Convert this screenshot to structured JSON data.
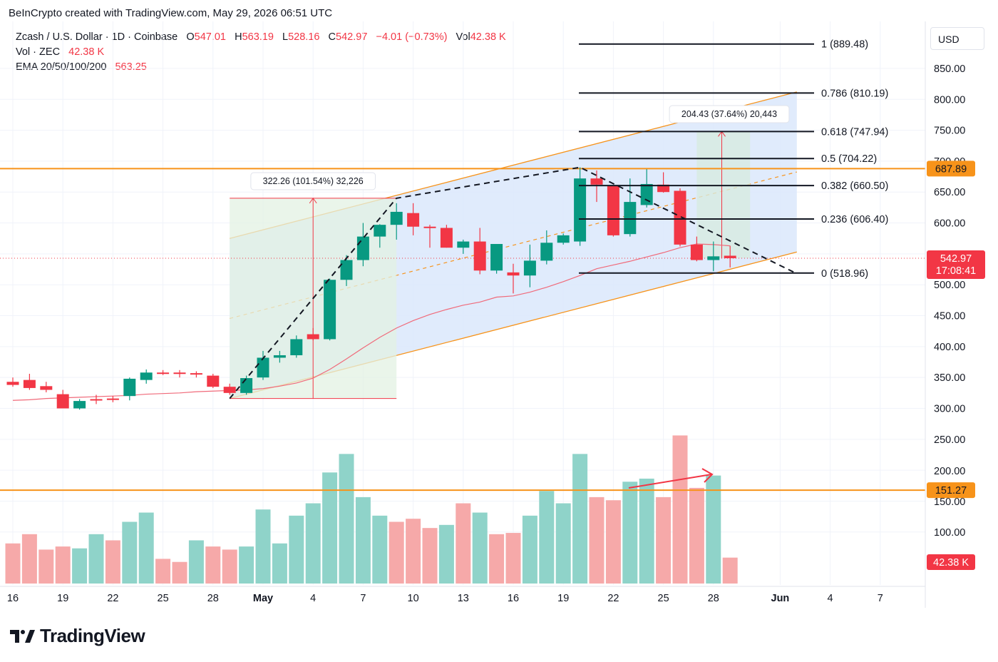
{
  "caption": "BeInCrypto created with TradingView.com, May 29, 2026 06:51 UTC",
  "legend": {
    "symbol": "Zcash / U.S. Dollar · 1D · Coinbase",
    "o_label": "O",
    "o_value": "547.01",
    "h_label": "H",
    "h_value": "563.19",
    "l_label": "L",
    "l_value": "528.16",
    "c_label": "C",
    "c_value": "542.97",
    "change": "−4.01 (−0.73%)",
    "vol_label": "Vol",
    "vol_value": "42.38 K",
    "vol_line": "Vol · ZEC",
    "vol_line_value": "42.38 K",
    "ema_line": "EMA 20/50/100/200",
    "ema_value": "563.25"
  },
  "currency": "USD",
  "brand": "TradingView",
  "colors": {
    "up": "#089981",
    "down": "#f23645",
    "vol_up": "#8fd3c9",
    "vol_down": "#f6a9a9",
    "orange": "#f7931a",
    "ema": "#f23645",
    "channel": "#dbe8fb"
  },
  "chart_data": {
    "type": "candlestick",
    "dates": [
      "Apr 16",
      "Apr 17",
      "Apr 18",
      "Apr 19",
      "Apr 20",
      "Apr 21",
      "Apr 22",
      "Apr 23",
      "Apr 24",
      "Apr 25",
      "Apr 26",
      "Apr 27",
      "Apr 28",
      "Apr 29",
      "Apr 30",
      "May 1",
      "May 2",
      "May 3",
      "May 4",
      "May 5",
      "May 6",
      "May 7",
      "May 8",
      "May 9",
      "May 10",
      "May 11",
      "May 12",
      "May 13",
      "May 14",
      "May 15",
      "May 16",
      "May 17",
      "May 18",
      "May 19",
      "May 20",
      "May 21",
      "May 22",
      "May 23",
      "May 24",
      "May 25",
      "May 26",
      "May 27",
      "May 28",
      "May 29"
    ],
    "ohlc": [
      [
        343,
        350,
        335,
        338
      ],
      [
        346,
        356,
        330,
        333
      ],
      [
        336,
        343,
        326,
        330
      ],
      [
        323,
        330,
        300,
        300
      ],
      [
        300,
        315,
        298,
        312
      ],
      [
        315,
        322,
        307,
        313
      ],
      [
        316,
        320,
        310,
        314
      ],
      [
        320,
        350,
        313,
        348
      ],
      [
        346,
        363,
        340,
        358
      ],
      [
        358,
        362,
        354,
        357
      ],
      [
        358,
        362,
        350,
        356
      ],
      [
        357,
        360,
        350,
        355
      ],
      [
        353,
        356,
        333,
        335
      ],
      [
        335,
        340,
        322,
        325
      ],
      [
        325,
        353,
        322,
        349
      ],
      [
        350,
        393,
        346,
        382
      ],
      [
        382,
        393,
        374,
        386
      ],
      [
        386,
        418,
        382,
        412
      ],
      [
        420,
        430,
        410,
        412
      ],
      [
        412,
        510,
        410,
        508
      ],
      [
        508,
        548,
        498,
        540
      ],
      [
        540,
        600,
        530,
        578
      ],
      [
        578,
        598,
        560,
        597
      ],
      [
        597,
        632,
        573,
        618
      ],
      [
        616,
        632,
        580,
        594
      ],
      [
        594,
        597,
        560,
        592
      ],
      [
        592,
        597,
        560,
        560
      ],
      [
        560,
        573,
        550,
        570
      ],
      [
        570,
        592,
        517,
        523
      ],
      [
        523,
        564,
        518,
        566
      ],
      [
        520,
        534,
        486,
        515
      ],
      [
        515,
        565,
        496,
        539
      ],
      [
        539,
        588,
        533,
        568
      ],
      [
        568,
        583,
        565,
        580
      ],
      [
        570,
        690,
        563,
        672
      ],
      [
        672,
        685,
        634,
        662
      ],
      [
        660,
        660,
        578,
        580
      ],
      [
        582,
        672,
        578,
        634
      ],
      [
        629,
        687,
        625,
        663
      ],
      [
        662,
        682,
        649,
        650
      ],
      [
        652,
        656,
        562,
        565
      ],
      [
        565,
        578,
        538,
        540
      ],
      [
        540,
        570,
        522,
        546
      ],
      [
        547,
        563,
        528,
        543
      ]
    ],
    "volume": [
      65,
      80,
      55,
      60,
      57,
      80,
      70,
      100,
      115,
      40,
      35,
      70,
      60,
      55,
      60,
      120,
      65,
      110,
      130,
      180,
      210,
      140,
      110,
      100,
      105,
      90,
      95,
      130,
      115,
      80,
      82,
      110,
      150,
      130,
      210,
      140,
      135,
      165,
      170,
      140,
      240,
      155,
      175,
      42
    ],
    "volume_down": [
      true,
      true,
      true,
      true,
      false,
      false,
      true,
      false,
      false,
      true,
      true,
      false,
      true,
      true,
      false,
      false,
      false,
      false,
      false,
      false,
      false,
      false,
      false,
      true,
      true,
      true,
      false,
      true,
      false,
      true,
      true,
      false,
      false,
      false,
      false,
      true,
      true,
      false,
      false,
      true,
      true,
      true,
      false,
      true
    ],
    "ema20": [
      313,
      314,
      316,
      317,
      318,
      319,
      320,
      321,
      323,
      324,
      325,
      327,
      328,
      329,
      330,
      332,
      336,
      341,
      349,
      363,
      380,
      398,
      415,
      430,
      442,
      452,
      460,
      467,
      472,
      480,
      482,
      488,
      496,
      505,
      515,
      526,
      532,
      538,
      545,
      552,
      560,
      566,
      565,
      563
    ],
    "x_ticks": [
      "16",
      "19",
      "22",
      "25",
      "28",
      "May",
      "4",
      "7",
      "10",
      "13",
      "16",
      "19",
      "22",
      "25",
      "28",
      "Jun",
      "4",
      "7"
    ],
    "y_ticks": [
      "850.00",
      "800.00",
      "750.00",
      "700.00",
      "650.00",
      "600.00",
      "550.00",
      "500.00",
      "450.00",
      "400.00",
      "350.00",
      "300.00",
      "250.00",
      "200.00",
      "150.00",
      "100.00"
    ],
    "price_tags": {
      "resistance": "687.89",
      "last_price": "542.97",
      "countdown": "17:08:41",
      "volume_level": "151.27",
      "last_volume": "42.38 K"
    },
    "fib_levels": [
      {
        "label": "1 (889.48)",
        "value": 889.48
      },
      {
        "label": "0.786 (810.19)",
        "value": 810.19
      },
      {
        "label": "0.618 (747.94)",
        "value": 747.94
      },
      {
        "label": "0.5 (704.22)",
        "value": 704.22
      },
      {
        "label": "0.382 (660.50)",
        "value": 660.5
      },
      {
        "label": "0.236 (606.40)",
        "value": 606.4
      },
      {
        "label": "0 (518.96)",
        "value": 518.96
      }
    ],
    "measures": [
      {
        "label": "322.26 (101.54%) 32,226",
        "from": "Apr 29",
        "to": "May 9",
        "low": 316,
        "high": 640
      },
      {
        "label": "204.43 (37.64%) 20,443",
        "from": "May 27",
        "to": "May 29",
        "low": 543,
        "high": 748
      }
    ],
    "horizontal_lines": [
      687.89,
      151.27
    ]
  }
}
